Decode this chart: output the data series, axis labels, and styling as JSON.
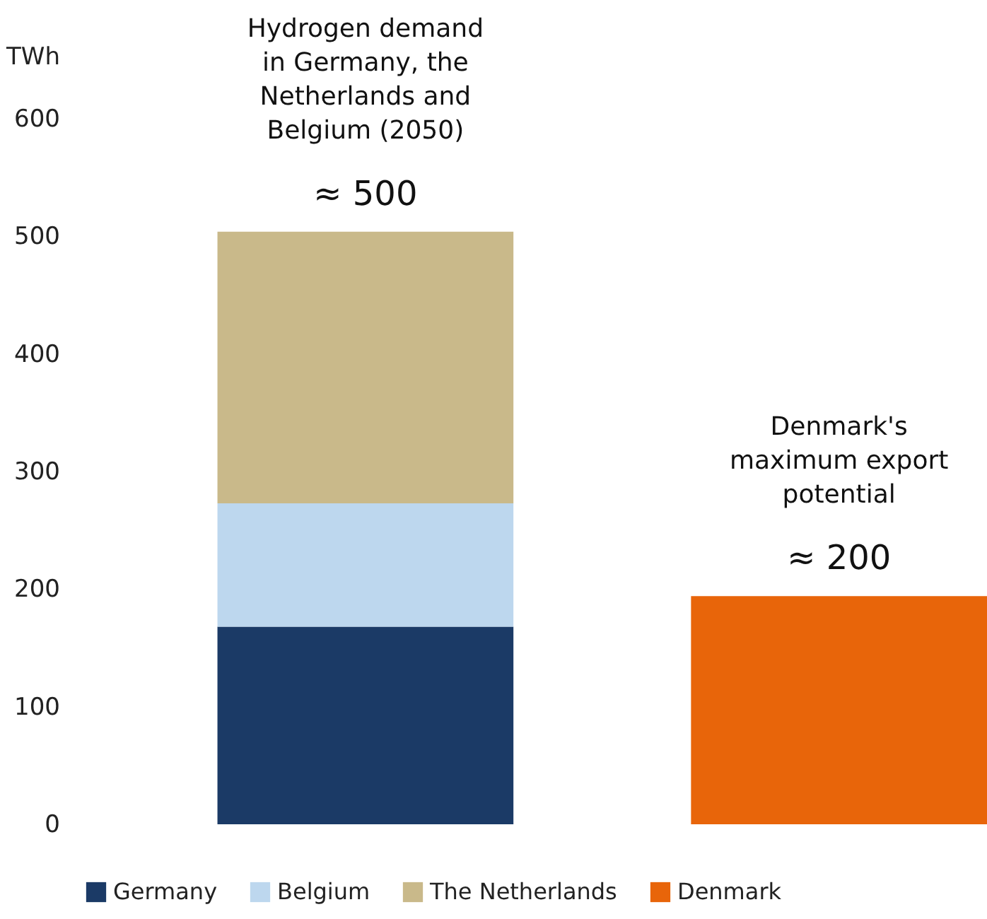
{
  "chart_data": {
    "type": "bar",
    "stacked": true,
    "categories": [
      null,
      null
    ],
    "ylabel": "TWh",
    "ylim": [
      0,
      600
    ],
    "yticks": [
      0,
      100,
      200,
      300,
      400,
      500,
      600
    ],
    "grid": false,
    "tick_labels": "y",
    "legend": "bottom",
    "series": [
      {
        "name": "Germany",
        "color": "#1b3a66",
        "values": [
          168,
          null
        ]
      },
      {
        "name": "Belgium",
        "color": "#bdd7ee",
        "values": [
          105,
          null
        ]
      },
      {
        "name": "The Netherlands",
        "color": "#c9b98a",
        "values": [
          231,
          null
        ]
      },
      {
        "name": "Denmark",
        "color": "#e8650a",
        "values": [
          null,
          194
        ]
      }
    ],
    "annotations": [
      "Hydrogen demand in Germany, the Netherlands and Belgium (2050)",
      "≈ 500",
      "Denmark's maximum export potential",
      "≈ 200"
    ]
  }
}
